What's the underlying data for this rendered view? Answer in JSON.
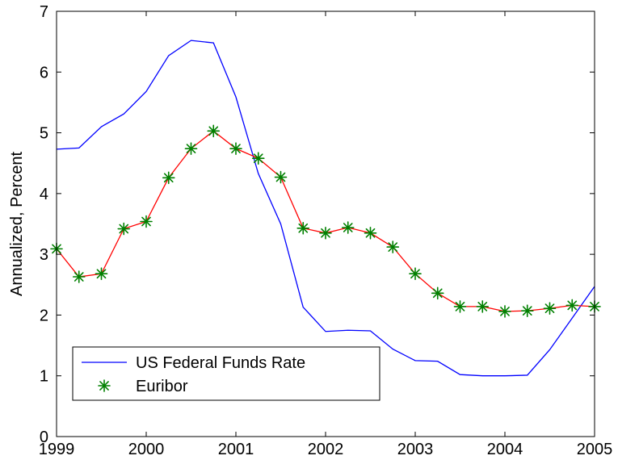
{
  "chart_data": {
    "type": "line",
    "title": "",
    "xlabel": "",
    "ylabel": "Annualized, Percent",
    "xlim": [
      1999,
      2005
    ],
    "ylim": [
      0,
      7
    ],
    "x_ticks": [
      "1999",
      "2000",
      "2001",
      "2002",
      "2003",
      "2004",
      "2005"
    ],
    "y_ticks": [
      "0",
      "1",
      "2",
      "3",
      "4",
      "5",
      "6",
      "7"
    ],
    "grid": false,
    "legend_position": "bottom-left",
    "series": [
      {
        "name": "US Federal Funds Rate",
        "color": "#0000ff",
        "marker": "none",
        "x": [
          1999.0,
          1999.25,
          1999.5,
          1999.75,
          2000.0,
          2000.25,
          2000.5,
          2000.75,
          2001.0,
          2001.25,
          2001.5,
          2001.75,
          2002.0,
          2002.25,
          2002.5,
          2002.75,
          2003.0,
          2003.25,
          2003.5,
          2003.75,
          2004.0,
          2004.25,
          2004.5,
          2004.75,
          2005.0
        ],
        "y": [
          4.73,
          4.75,
          5.1,
          5.31,
          5.68,
          6.27,
          6.52,
          6.48,
          5.59,
          4.33,
          3.5,
          2.13,
          1.73,
          1.75,
          1.74,
          1.44,
          1.25,
          1.24,
          1.02,
          1.0,
          1.0,
          1.01,
          1.43,
          1.95,
          2.47
        ]
      },
      {
        "name": "Euribor",
        "color": "#ff0000",
        "marker": "asterisk",
        "marker_color": "#008000",
        "x": [
          1999.0,
          1999.25,
          1999.5,
          1999.75,
          2000.0,
          2000.25,
          2000.5,
          2000.75,
          2001.0,
          2001.25,
          2001.5,
          2001.75,
          2002.0,
          2002.25,
          2002.5,
          2002.75,
          2003.0,
          2003.25,
          2003.5,
          2003.75,
          2004.0,
          2004.25,
          2004.5,
          2004.75,
          2005.0
        ],
        "y": [
          3.09,
          2.63,
          2.68,
          3.42,
          3.54,
          4.26,
          4.74,
          5.03,
          4.74,
          4.58,
          4.27,
          3.43,
          3.35,
          3.44,
          3.35,
          3.12,
          2.68,
          2.36,
          2.14,
          2.14,
          2.06,
          2.07,
          2.11,
          2.16,
          2.14
        ]
      }
    ],
    "legend": {
      "entries": [
        "US Federal Funds Rate",
        "Euribor"
      ]
    }
  }
}
